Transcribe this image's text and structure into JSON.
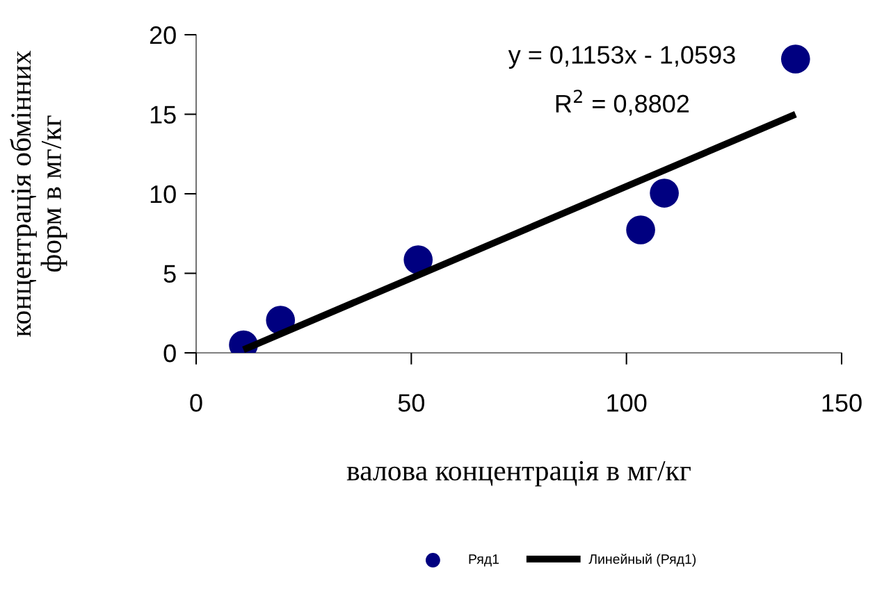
{
  "chart_data": {
    "type": "scatter",
    "xlabel": "валова концентрація в мг/кг",
    "ylabel": "концентрація обмінних\nформ в мг/кг",
    "x": [
      11.0,
      19.6,
      51.6,
      103.3,
      108.8,
      139.3
    ],
    "series": [
      {
        "name": "Ряд1",
        "color": "#000080",
        "marker": "circle",
        "values": [
          0.5,
          2.05,
          5.85,
          7.73,
          10.04,
          18.47
        ]
      },
      {
        "name": "Линейный (Ряд1)",
        "type": "line",
        "color": "#000000",
        "x": [
          11.0,
          139.3
        ],
        "values": [
          0.2,
          15.0
        ],
        "line_style": "solid",
        "marker": "none"
      }
    ],
    "annotations": [
      "y = 0,1153x - 1,0593",
      "R$^{2}$ = 0,8802"
    ],
    "xlim": [
      0,
      150
    ],
    "xticks": [
      0,
      50,
      100,
      150
    ],
    "ylim": [
      0,
      20
    ],
    "yticks": [
      0,
      5,
      10,
      15,
      20
    ],
    "grid": false,
    "legend": "bottom"
  }
}
